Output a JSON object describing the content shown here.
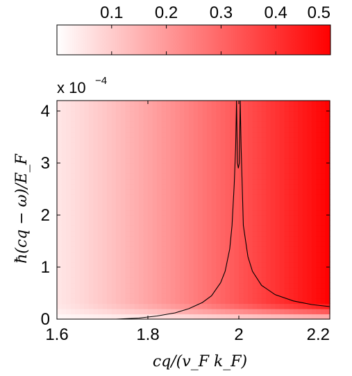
{
  "chart_data": {
    "type": "heatmap",
    "title": "",
    "xlabel": "cq/(v_F k_F)",
    "ylabel": "ħ(cq − ω)/E_F",
    "x_range": [
      1.6,
      2.2
    ],
    "y_range": [
      0,
      4.2
    ],
    "y_scale_note": {
      "prefix": "x 10",
      "exponent": "−4"
    },
    "x_ticks": [
      "1.6",
      "1.8",
      "2",
      "2.2"
    ],
    "y_ticks": [
      "0",
      "1",
      "2",
      "3",
      "4"
    ],
    "x_tick_values": [
      1.6,
      1.8,
      2.0,
      2.2
    ],
    "y_tick_values": [
      0,
      1,
      2,
      3,
      4
    ],
    "colorbar": {
      "range": [
        0,
        0.5
      ],
      "ticks": [
        "0.1",
        "0.2",
        "0.3",
        "0.4",
        "0.5"
      ],
      "tick_values": [
        0.1,
        0.2,
        0.3,
        0.4,
        0.5
      ],
      "low_color": "#ffffff",
      "high_color": "#ff0000",
      "placement": "top"
    },
    "value_field": {
      "description_of_trend": "increases left to right",
      "left_edge_value": 0.05,
      "right_edge_value": 0.5,
      "bottom_fade_below_y": 0.3
    },
    "contour": {
      "x": [
        1.73,
        1.78,
        1.82,
        1.86,
        1.89,
        1.92,
        1.94,
        1.96,
        1.97,
        1.98,
        1.985,
        1.99,
        1.993,
        1.995,
        1.997,
        1.999,
        2.001,
        2.003,
        2.005,
        2.01,
        2.02,
        2.03,
        2.05,
        2.08,
        2.12,
        2.16,
        2.2
      ],
      "y": [
        0.0,
        0.02,
        0.06,
        0.12,
        0.2,
        0.32,
        0.45,
        0.7,
        0.92,
        1.35,
        1.8,
        2.6,
        3.3,
        4.2,
        3.0,
        2.9,
        3.0,
        4.2,
        3.3,
        1.8,
        1.2,
        0.92,
        0.65,
        0.47,
        0.35,
        0.28,
        0.24
      ]
    },
    "grid": false,
    "colors": {
      "low": "#ffffff",
      "high": "#ff0000",
      "contour": "#000000",
      "frame": "#000000"
    }
  }
}
